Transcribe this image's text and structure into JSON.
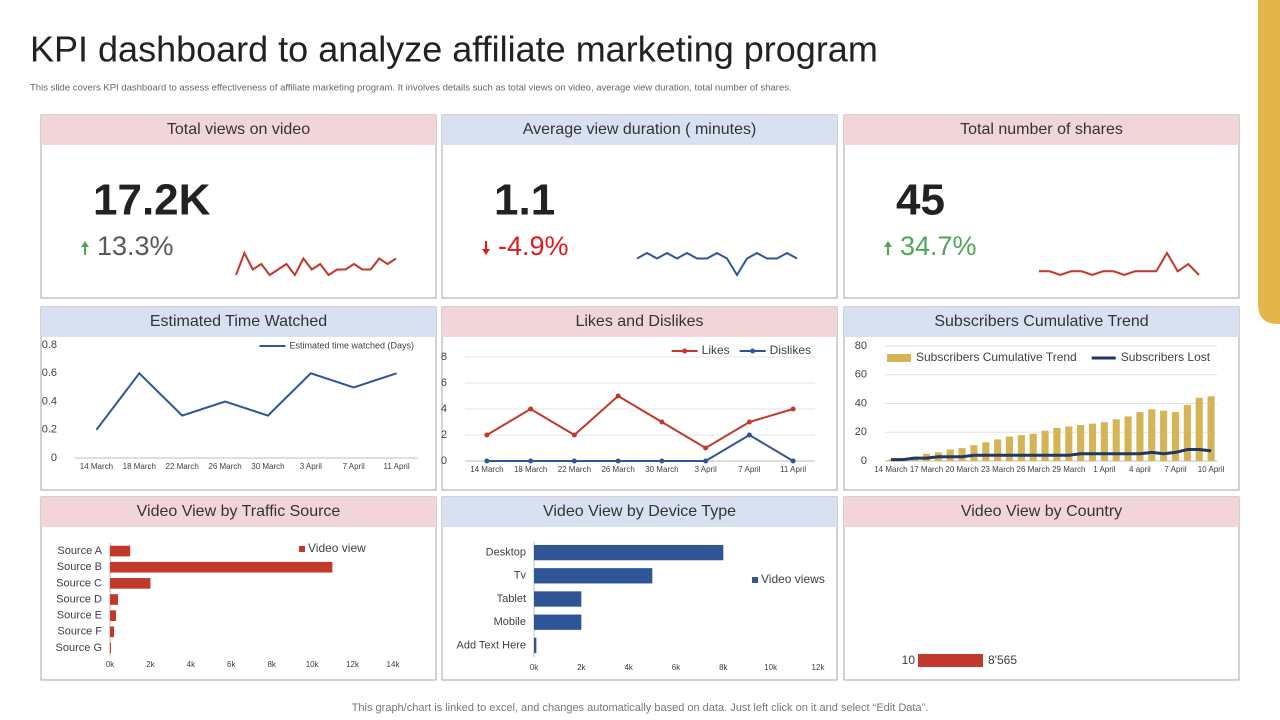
{
  "title": "KPI dashboard to analyze affiliate marketing program",
  "subtitle": "This slide covers KPI dashboard to assess effectiveness of affiliate marketing program. It involves details such as total views on video, average view duration, total number of shares.",
  "footer": "This graph/chart is linked to excel, and changes automatically based on data. Just left click on it and select “Edit Data”.",
  "kpis": [
    {
      "title": "Total views on video",
      "value": "17.2K",
      "change": "13.3%",
      "direction": "up",
      "change_color": "#595959",
      "trend_color": "#c0392b",
      "trend": [
        3,
        7,
        4,
        5,
        3,
        4,
        5,
        3,
        6,
        4,
        5,
        3,
        4,
        4,
        5,
        4,
        4,
        6,
        5,
        6
      ]
    },
    {
      "title": "Average view duration ( minutes)",
      "value": "1.1",
      "change": "-4.9%",
      "direction": "down",
      "change_color": "#e31a1c",
      "trend_color": "#2f5597",
      "trend": [
        5,
        6,
        5,
        6,
        5,
        6,
        5,
        5,
        6,
        5,
        2,
        5,
        6,
        5,
        5,
        6,
        5
      ]
    },
    {
      "title": "Total number of shares",
      "value": "45",
      "change": "34.7%",
      "direction": "up",
      "change_color": "#4ea65a",
      "trend_color": "#c0392b",
      "trend": [
        4,
        4,
        3,
        4,
        4,
        3,
        4,
        4,
        3,
        4,
        4,
        4,
        9,
        4,
        6,
        3
      ]
    }
  ],
  "chart_data": [
    {
      "type": "line",
      "title": "Estimated Time Watched",
      "grid": false,
      "legend": "top-right",
      "categories": [
        "14 March",
        "18 March",
        "22 March",
        "26 March",
        "30 March",
        "3 April",
        "7 April",
        "11 April"
      ],
      "series": [
        {
          "name": "Estimated time watched (Days)",
          "color": "#2f5597",
          "values": [
            0.2,
            0.6,
            0.3,
            0.4,
            0.3,
            0.6,
            0.5,
            0.6
          ]
        }
      ],
      "ylim": [
        0,
        0.8
      ],
      "yticks": [
        0,
        0.2,
        0.4,
        0.6,
        0.8
      ]
    },
    {
      "type": "line",
      "title": "Likes and Dislikes",
      "grid": true,
      "legend": "top-right",
      "markers": true,
      "categories": [
        "14 March",
        "18 March",
        "22 March",
        "26 March",
        "30 March",
        "3 April",
        "7 April",
        "11 April"
      ],
      "series": [
        {
          "name": "Likes",
          "color": "#c0392b",
          "values": [
            2,
            4,
            2,
            5,
            3,
            1,
            3,
            4
          ]
        },
        {
          "name": "Dislikes",
          "color": "#2f5597",
          "values": [
            0,
            0,
            0,
            0,
            0,
            0,
            2,
            0
          ]
        }
      ],
      "ylim": [
        0,
        8
      ],
      "yticks": [
        0,
        2,
        4,
        6,
        8
      ]
    },
    {
      "type": "combo",
      "title": "Subscribers Cumulative Trend",
      "grid": true,
      "legend": "top",
      "categories": [
        "14 March",
        null,
        null,
        "17 March",
        null,
        null,
        "20 March",
        null,
        null,
        "23 March",
        null,
        null,
        "26 March",
        null,
        null,
        "29 March",
        null,
        null,
        "1 April",
        null,
        null,
        "4 april",
        null,
        null,
        "7 April",
        null,
        null,
        "10 April"
      ],
      "series": [
        {
          "name": "Subscribers Cumulative Trend",
          "color": "#d4b455",
          "type": "bar",
          "values": [
            1,
            2,
            3,
            5,
            6,
            8,
            9,
            11,
            13,
            15,
            17,
            18,
            19,
            21,
            23,
            24,
            25,
            26,
            27,
            29,
            31,
            34,
            36,
            35,
            34,
            39,
            44,
            45
          ]
        },
        {
          "name": "Subscribers Lost",
          "color": "#1f3864",
          "type": "line",
          "values": [
            1,
            1,
            2,
            2,
            3,
            3,
            3,
            4,
            4,
            4,
            4,
            4,
            4,
            4,
            4,
            4,
            5,
            5,
            5,
            5,
            5,
            5,
            6,
            5,
            6,
            8,
            8,
            7
          ]
        }
      ],
      "ylim": [
        0,
        80
      ],
      "yticks": [
        0,
        20,
        40,
        60,
        80
      ]
    },
    {
      "type": "hbar",
      "title": "Video View by Traffic Source",
      "legend": "right",
      "categories": [
        "Source A",
        "Source B",
        "Source C",
        "Source D",
        "Source E",
        "Source F",
        "Source G"
      ],
      "series": [
        {
          "name": "Video view",
          "color": "#c0392b",
          "values": [
            1000,
            11000,
            2000,
            400,
            300,
            200,
            50
          ]
        }
      ],
      "xlim": [
        0,
        14000
      ],
      "xticks": [
        {
          "value": 0,
          "label": "0k"
        },
        {
          "value": 2000,
          "label": "2k"
        },
        {
          "value": 4000,
          "label": "4k"
        },
        {
          "value": 6000,
          "label": "6k"
        },
        {
          "value": 8000,
          "label": "8k"
        },
        {
          "value": 10000,
          "label": "10k"
        },
        {
          "value": 12000,
          "label": "12k"
        },
        {
          "value": 14000,
          "label": "14k"
        }
      ]
    },
    {
      "type": "hbar",
      "title": "Video View by Device Type",
      "legend": "right",
      "categories": [
        "Desktop",
        "Tv",
        "Tablet",
        "Mobile",
        "Add Text Here"
      ],
      "series": [
        {
          "name": "Video views",
          "color": "#2f5597",
          "values": [
            8000,
            5000,
            2000,
            2000,
            100
          ]
        }
      ],
      "xlim": [
        0,
        12000
      ],
      "xticks": [
        {
          "value": 0,
          "label": "0k"
        },
        {
          "value": 2000,
          "label": "2k"
        },
        {
          "value": 4000,
          "label": "4k"
        },
        {
          "value": 6000,
          "label": "6k"
        },
        {
          "value": 8000,
          "label": "8k"
        },
        {
          "value": 10000,
          "label": "10k"
        },
        {
          "value": 12000,
          "label": "12k"
        }
      ]
    },
    {
      "type": "map",
      "title": "Video View by Country",
      "color": "#c0392b",
      "scale": [
        10,
        {
          "value": 8565,
          "label": "8'565"
        }
      ]
    }
  ]
}
